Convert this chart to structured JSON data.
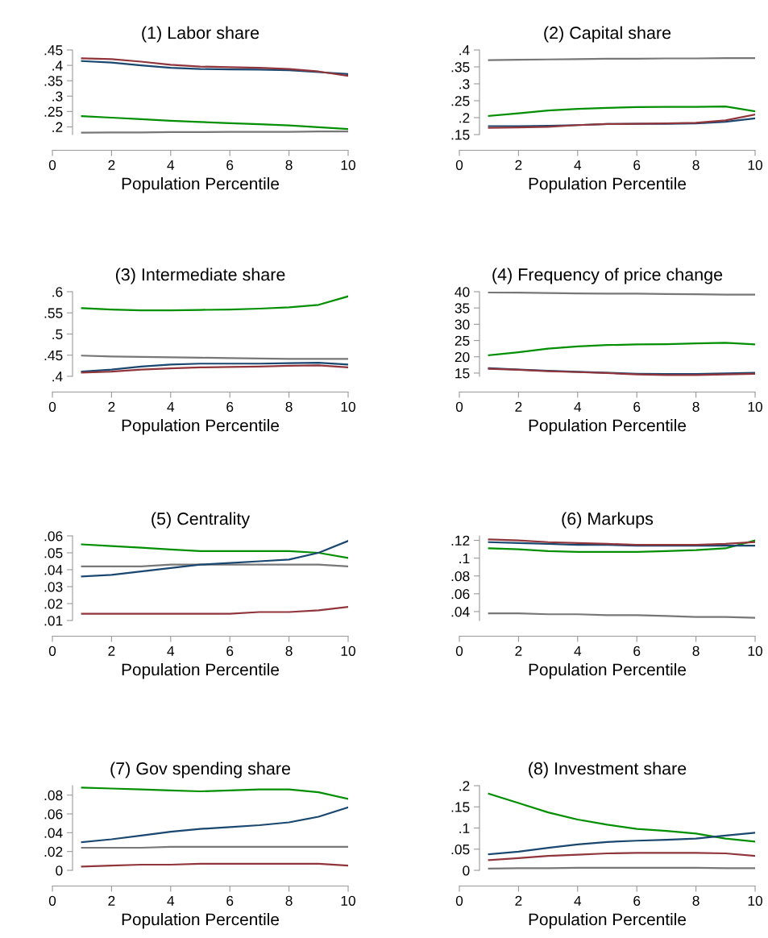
{
  "chart_data": [
    {
      "type": "line",
      "title": "(1) Labor share",
      "xlabel": "Population Percentile",
      "x": [
        1,
        2,
        3,
        4,
        5,
        6,
        7,
        8,
        9,
        10
      ],
      "xlim": [
        0,
        10
      ],
      "xticks": [
        0,
        2,
        4,
        6,
        8,
        10
      ],
      "ylim": [
        0.175,
        0.45
      ],
      "yticks": [
        {
          "value": 0.2,
          "label": ".2"
        },
        {
          "value": 0.25,
          "label": ".25"
        },
        {
          "value": 0.3,
          "label": ".3"
        },
        {
          "value": 0.35,
          "label": ".35"
        },
        {
          "value": 0.4,
          "label": ".4"
        },
        {
          "value": 0.45,
          "label": ".45"
        }
      ],
      "series": [
        {
          "color": "#777777",
          "values": [
            0.181,
            0.182,
            0.182,
            0.183,
            0.183,
            0.184,
            0.184,
            0.184,
            0.185,
            0.185
          ]
        },
        {
          "color": "#008f00",
          "values": [
            0.235,
            0.23,
            0.225,
            0.22,
            0.216,
            0.212,
            0.209,
            0.205,
            0.199,
            0.193
          ]
        },
        {
          "color": "#1a476f",
          "values": [
            0.414,
            0.409,
            0.4,
            0.392,
            0.388,
            0.387,
            0.386,
            0.384,
            0.378,
            0.372
          ]
        },
        {
          "color": "#90353b",
          "values": [
            0.423,
            0.42,
            0.412,
            0.402,
            0.396,
            0.394,
            0.392,
            0.388,
            0.38,
            0.366
          ]
        }
      ]
    },
    {
      "type": "line",
      "title": "(2) Capital share",
      "xlabel": "Population Percentile",
      "x": [
        1,
        2,
        3,
        4,
        5,
        6,
        7,
        8,
        9,
        10
      ],
      "xlim": [
        0,
        10
      ],
      "xticks": [
        0,
        2,
        4,
        6,
        8,
        10
      ],
      "ylim": [
        0.15,
        0.4
      ],
      "yticks": [
        {
          "value": 0.15,
          "label": ".15"
        },
        {
          "value": 0.2,
          "label": ".2"
        },
        {
          "value": 0.25,
          "label": ".25"
        },
        {
          "value": 0.3,
          "label": ".3"
        },
        {
          "value": 0.35,
          "label": ".35"
        },
        {
          "value": 0.4,
          "label": ".4"
        }
      ],
      "series": [
        {
          "color": "#777777",
          "values": [
            0.37,
            0.371,
            0.372,
            0.373,
            0.374,
            0.374,
            0.375,
            0.375,
            0.376,
            0.376
          ]
        },
        {
          "color": "#008f00",
          "values": [
            0.205,
            0.213,
            0.221,
            0.226,
            0.229,
            0.231,
            0.232,
            0.232,
            0.233,
            0.219
          ]
        },
        {
          "color": "#1a476f",
          "values": [
            0.175,
            0.175,
            0.176,
            0.178,
            0.181,
            0.182,
            0.182,
            0.183,
            0.188,
            0.198
          ]
        },
        {
          "color": "#90353b",
          "values": [
            0.17,
            0.171,
            0.173,
            0.178,
            0.181,
            0.182,
            0.183,
            0.185,
            0.192,
            0.209
          ]
        }
      ]
    },
    {
      "type": "line",
      "title": "(3) Intermediate share",
      "xlabel": "Population Percentile",
      "x": [
        1,
        2,
        3,
        4,
        5,
        6,
        7,
        8,
        9,
        10
      ],
      "xlim": [
        0,
        10
      ],
      "xticks": [
        0,
        2,
        4,
        6,
        8,
        10
      ],
      "ylim": [
        0.4,
        0.6
      ],
      "yticks": [
        {
          "value": 0.4,
          "label": ".4"
        },
        {
          "value": 0.45,
          "label": ".45"
        },
        {
          "value": 0.5,
          "label": ".5"
        },
        {
          "value": 0.55,
          "label": ".55"
        },
        {
          "value": 0.6,
          "label": ".6"
        }
      ],
      "series": [
        {
          "color": "#777777",
          "values": [
            0.449,
            0.447,
            0.446,
            0.445,
            0.444,
            0.443,
            0.442,
            0.441,
            0.441,
            0.441
          ]
        },
        {
          "color": "#008f00",
          "values": [
            0.561,
            0.558,
            0.556,
            0.556,
            0.557,
            0.558,
            0.56,
            0.563,
            0.569,
            0.589
          ]
        },
        {
          "color": "#1a476f",
          "values": [
            0.411,
            0.416,
            0.423,
            0.428,
            0.43,
            0.43,
            0.43,
            0.431,
            0.432,
            0.428
          ]
        },
        {
          "color": "#90353b",
          "values": [
            0.409,
            0.411,
            0.416,
            0.419,
            0.421,
            0.422,
            0.423,
            0.425,
            0.426,
            0.421
          ]
        }
      ]
    },
    {
      "type": "line",
      "title": "(4) Frequency of price change",
      "xlabel": "Population Percentile",
      "x": [
        1,
        2,
        3,
        4,
        5,
        6,
        7,
        8,
        9,
        10
      ],
      "xlim": [
        0,
        10
      ],
      "xticks": [
        0,
        2,
        4,
        6,
        8,
        10
      ],
      "ylim": [
        14,
        40
      ],
      "yticks": [
        15,
        20,
        25,
        30,
        35,
        40
      ],
      "series": [
        {
          "color": "#777777",
          "values": [
            39.8,
            39.7,
            39.6,
            39.5,
            39.4,
            39.4,
            39.3,
            39.2,
            39.1,
            39.1
          ]
        },
        {
          "color": "#008f00",
          "values": [
            20.5,
            21.4,
            22.5,
            23.2,
            23.6,
            23.8,
            23.9,
            24.1,
            24.3,
            23.8
          ]
        },
        {
          "color": "#1a476f",
          "values": [
            16.5,
            16.1,
            15.7,
            15.4,
            15.1,
            14.8,
            14.7,
            14.7,
            14.9,
            15.1
          ]
        },
        {
          "color": "#90353b",
          "values": [
            16.3,
            16.0,
            15.6,
            15.3,
            15.0,
            14.6,
            14.4,
            14.4,
            14.6,
            14.8
          ]
        }
      ]
    },
    {
      "type": "line",
      "title": "(5) Centrality",
      "xlabel": "Population Percentile",
      "x": [
        1,
        2,
        3,
        4,
        5,
        6,
        7,
        8,
        9,
        10
      ],
      "xlim": [
        0,
        10
      ],
      "xticks": [
        0,
        2,
        4,
        6,
        8,
        10
      ],
      "ylim": [
        0.01,
        0.06
      ],
      "yticks": [
        {
          "value": 0.01,
          "label": ".01"
        },
        {
          "value": 0.02,
          "label": ".02"
        },
        {
          "value": 0.03,
          "label": ".03"
        },
        {
          "value": 0.04,
          "label": ".04"
        },
        {
          "value": 0.05,
          "label": ".05"
        },
        {
          "value": 0.06,
          "label": ".06"
        }
      ],
      "series": [
        {
          "color": "#777777",
          "values": [
            0.042,
            0.042,
            0.042,
            0.043,
            0.043,
            0.043,
            0.043,
            0.043,
            0.043,
            0.042
          ]
        },
        {
          "color": "#008f00",
          "values": [
            0.055,
            0.054,
            0.053,
            0.052,
            0.051,
            0.051,
            0.051,
            0.051,
            0.05,
            0.047
          ]
        },
        {
          "color": "#1a476f",
          "values": [
            0.036,
            0.037,
            0.039,
            0.041,
            0.043,
            0.044,
            0.045,
            0.046,
            0.05,
            0.057
          ]
        },
        {
          "color": "#90353b",
          "values": [
            0.014,
            0.014,
            0.014,
            0.014,
            0.014,
            0.014,
            0.015,
            0.015,
            0.016,
            0.018
          ]
        }
      ]
    },
    {
      "type": "line",
      "title": "(6) Markups",
      "xlabel": "Population Percentile",
      "x": [
        1,
        2,
        3,
        4,
        5,
        6,
        7,
        8,
        9,
        10
      ],
      "xlim": [
        0,
        10
      ],
      "xticks": [
        0,
        2,
        4,
        6,
        8,
        10
      ],
      "ylim": [
        0.03,
        0.125
      ],
      "yticks": [
        {
          "value": 0.04,
          "label": ".04"
        },
        {
          "value": 0.06,
          "label": ".06"
        },
        {
          "value": 0.08,
          "label": ".08"
        },
        {
          "value": 0.1,
          "label": ".1"
        },
        {
          "value": 0.12,
          "label": ".12"
        }
      ],
      "series": [
        {
          "color": "#777777",
          "values": [
            0.038,
            0.038,
            0.037,
            0.037,
            0.036,
            0.036,
            0.035,
            0.034,
            0.034,
            0.033
          ]
        },
        {
          "color": "#008f00",
          "values": [
            0.111,
            0.11,
            0.108,
            0.107,
            0.107,
            0.107,
            0.108,
            0.109,
            0.111,
            0.12
          ]
        },
        {
          "color": "#1a476f",
          "values": [
            0.118,
            0.117,
            0.116,
            0.115,
            0.115,
            0.114,
            0.114,
            0.114,
            0.114,
            0.114
          ]
        },
        {
          "color": "#90353b",
          "values": [
            0.121,
            0.12,
            0.118,
            0.117,
            0.116,
            0.115,
            0.115,
            0.115,
            0.116,
            0.118
          ]
        }
      ]
    },
    {
      "type": "line",
      "title": "(7) Gov spending share",
      "xlabel": "Population Percentile",
      "x": [
        1,
        2,
        3,
        4,
        5,
        6,
        7,
        8,
        9,
        10
      ],
      "xlim": [
        0,
        10
      ],
      "xticks": [
        0,
        2,
        4,
        6,
        8,
        10
      ],
      "ylim": [
        0,
        0.09
      ],
      "yticks": [
        0,
        {
          "value": 0.02,
          "label": ".02"
        },
        {
          "value": 0.04,
          "label": ".04"
        },
        {
          "value": 0.06,
          "label": ".06"
        },
        {
          "value": 0.08,
          "label": ".08"
        }
      ],
      "series": [
        {
          "color": "#777777",
          "values": [
            0.024,
            0.024,
            0.024,
            0.025,
            0.025,
            0.025,
            0.025,
            0.025,
            0.025,
            0.025
          ]
        },
        {
          "color": "#008f00",
          "values": [
            0.088,
            0.087,
            0.086,
            0.085,
            0.084,
            0.085,
            0.086,
            0.086,
            0.083,
            0.076
          ]
        },
        {
          "color": "#1a476f",
          "values": [
            0.03,
            0.033,
            0.037,
            0.041,
            0.044,
            0.046,
            0.048,
            0.051,
            0.057,
            0.067
          ]
        },
        {
          "color": "#90353b",
          "values": [
            0.004,
            0.005,
            0.006,
            0.006,
            0.007,
            0.007,
            0.007,
            0.007,
            0.007,
            0.005
          ]
        }
      ]
    },
    {
      "type": "line",
      "title": "(8) Investment share",
      "xlabel": "Population Percentile",
      "x": [
        1,
        2,
        3,
        4,
        5,
        6,
        7,
        8,
        9,
        10
      ],
      "xlim": [
        0,
        10
      ],
      "xticks": [
        0,
        2,
        4,
        6,
        8,
        10
      ],
      "ylim": [
        0,
        0.2
      ],
      "yticks": [
        0,
        {
          "value": 0.05,
          "label": ".05"
        },
        {
          "value": 0.1,
          "label": ".1"
        },
        {
          "value": 0.15,
          "label": ".15"
        },
        {
          "value": 0.2,
          "label": ".2"
        }
      ],
      "series": [
        {
          "color": "#777777",
          "values": [
            0.004,
            0.005,
            0.005,
            0.006,
            0.006,
            0.006,
            0.006,
            0.006,
            0.005,
            0.005
          ]
        },
        {
          "color": "#008f00",
          "values": [
            0.181,
            0.159,
            0.137,
            0.12,
            0.108,
            0.098,
            0.093,
            0.087,
            0.075,
            0.068
          ]
        },
        {
          "color": "#1a476f",
          "values": [
            0.038,
            0.044,
            0.053,
            0.061,
            0.067,
            0.07,
            0.072,
            0.075,
            0.082,
            0.089
          ]
        },
        {
          "color": "#90353b",
          "values": [
            0.024,
            0.029,
            0.034,
            0.037,
            0.04,
            0.041,
            0.041,
            0.041,
            0.04,
            0.034
          ]
        }
      ]
    }
  ]
}
